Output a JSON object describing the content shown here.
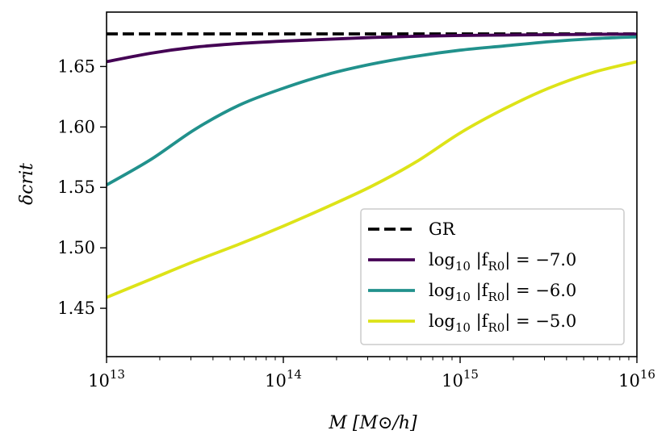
{
  "chart_data": {
    "type": "line",
    "title": "",
    "xlabel": "M [M⊙/h]",
    "ylabel": "δcrit",
    "xscale": "log",
    "xlim_log10": [
      13,
      16
    ],
    "ylim": [
      1.41,
      1.695
    ],
    "x_ticks": [
      {
        "log10": 13,
        "base": "10",
        "exp": "13"
      },
      {
        "log10": 14,
        "base": "10",
        "exp": "14"
      },
      {
        "log10": 15,
        "base": "10",
        "exp": "15"
      },
      {
        "log10": 16,
        "base": "10",
        "exp": "16"
      }
    ],
    "y_ticks": [
      {
        "value": 1.45,
        "label": "1.45"
      },
      {
        "value": 1.5,
        "label": "1.50"
      },
      {
        "value": 1.55,
        "label": "1.55"
      },
      {
        "value": 1.6,
        "label": "1.60"
      },
      {
        "value": 1.65,
        "label": "1.65"
      }
    ],
    "legend_position": "lower-right",
    "series": [
      {
        "name": "GR",
        "label": "GR",
        "color": "#000000",
        "dashed": true,
        "x_log10": [
          13.0,
          16.0
        ],
        "values": [
          1.677,
          1.677
        ]
      },
      {
        "name": "log10 |fR0| = -7.0",
        "label_prefix": "log",
        "label_sub": "10",
        "label_mid": " |f",
        "label_sub2": "R0",
        "label_suffix": "| = −7.0",
        "color": "#440154",
        "dashed": false,
        "x_log10": [
          13.0,
          13.25,
          13.5,
          13.75,
          14.0,
          14.25,
          14.5,
          14.75,
          15.0,
          15.25,
          15.5,
          15.75,
          16.0
        ],
        "values": [
          1.654,
          1.661,
          1.666,
          1.669,
          1.671,
          1.6725,
          1.674,
          1.675,
          1.6757,
          1.676,
          1.6763,
          1.6766,
          1.6768
        ]
      },
      {
        "name": "log10 |fR0| = -6.0",
        "label_prefix": "log",
        "label_sub": "10",
        "label_mid": " |f",
        "label_sub2": "R0",
        "label_suffix": "| = −6.0",
        "color": "#21918c",
        "dashed": false,
        "x_log10": [
          13.0,
          13.25,
          13.5,
          13.75,
          14.0,
          14.25,
          14.5,
          14.75,
          15.0,
          15.25,
          15.5,
          15.75,
          16.0
        ],
        "values": [
          1.552,
          1.573,
          1.598,
          1.618,
          1.632,
          1.6435,
          1.652,
          1.6585,
          1.6635,
          1.667,
          1.6705,
          1.673,
          1.6745
        ]
      },
      {
        "name": "log10 |fR0| = -5.0",
        "label_prefix": "log",
        "label_sub": "10",
        "label_mid": " |f",
        "label_sub2": "R0",
        "label_suffix": "| = −5.0",
        "color": "#dde318",
        "dashed": false,
        "x_log10": [
          13.0,
          13.25,
          13.5,
          13.75,
          14.0,
          14.25,
          14.5,
          14.75,
          15.0,
          15.25,
          15.5,
          15.75,
          16.0
        ],
        "values": [
          1.459,
          1.474,
          1.489,
          1.503,
          1.518,
          1.534,
          1.551,
          1.571,
          1.595,
          1.615,
          1.632,
          1.645,
          1.654
        ]
      }
    ]
  }
}
